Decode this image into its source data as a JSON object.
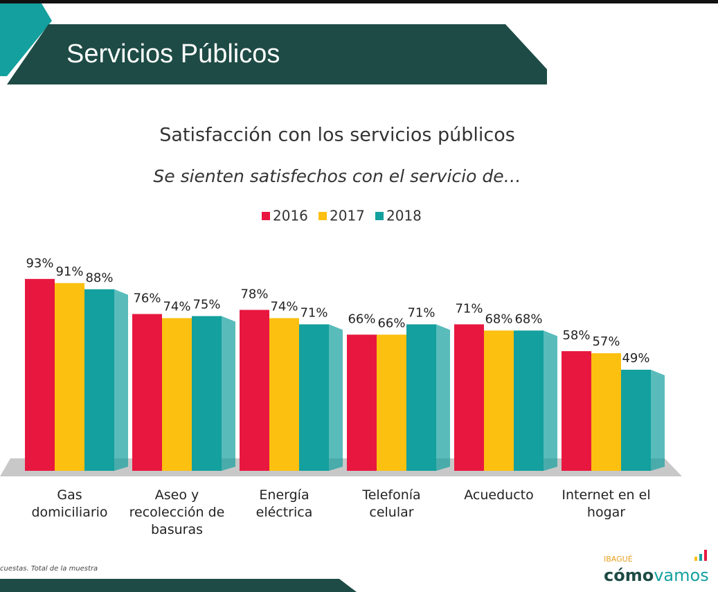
{
  "header": {
    "title": "Servicios Públicos"
  },
  "chart_data": {
    "type": "bar",
    "title": "Satisfacción con los servicios públicos",
    "subtitle": "Se sienten satisfechos con el servicio de…",
    "categories": [
      "Gas domiciliario",
      "Aseo y recolección de basuras",
      "Energía eléctrica",
      "Telefonía celular",
      "Acueducto",
      "Internet en el hogar"
    ],
    "series": [
      {
        "name": "2016",
        "color": "#e8173f",
        "values": [
          93,
          76,
          78,
          66,
          71,
          58
        ],
        "value_labels": [
          "93%",
          "76%",
          "78%",
          "66%",
          "71%",
          "58%"
        ]
      },
      {
        "name": "2017",
        "color": "#fcc010",
        "values": [
          91,
          74,
          74,
          66,
          68,
          57
        ],
        "value_labels": [
          "91%",
          "74%",
          "74%",
          "66%",
          "68%",
          "57%"
        ]
      },
      {
        "name": "2018",
        "color": "#13a09e",
        "values": [
          88,
          75,
          71,
          71,
          68,
          49
        ],
        "value_labels": [
          "88%",
          "75%",
          "71%",
          "71%",
          "68%",
          "49%"
        ]
      }
    ]
  },
  "footnote": "cuestas. Total de la muestra",
  "logo": {
    "city": "IBAGUÉ",
    "word1": "cómo",
    "word2": "vamos"
  }
}
